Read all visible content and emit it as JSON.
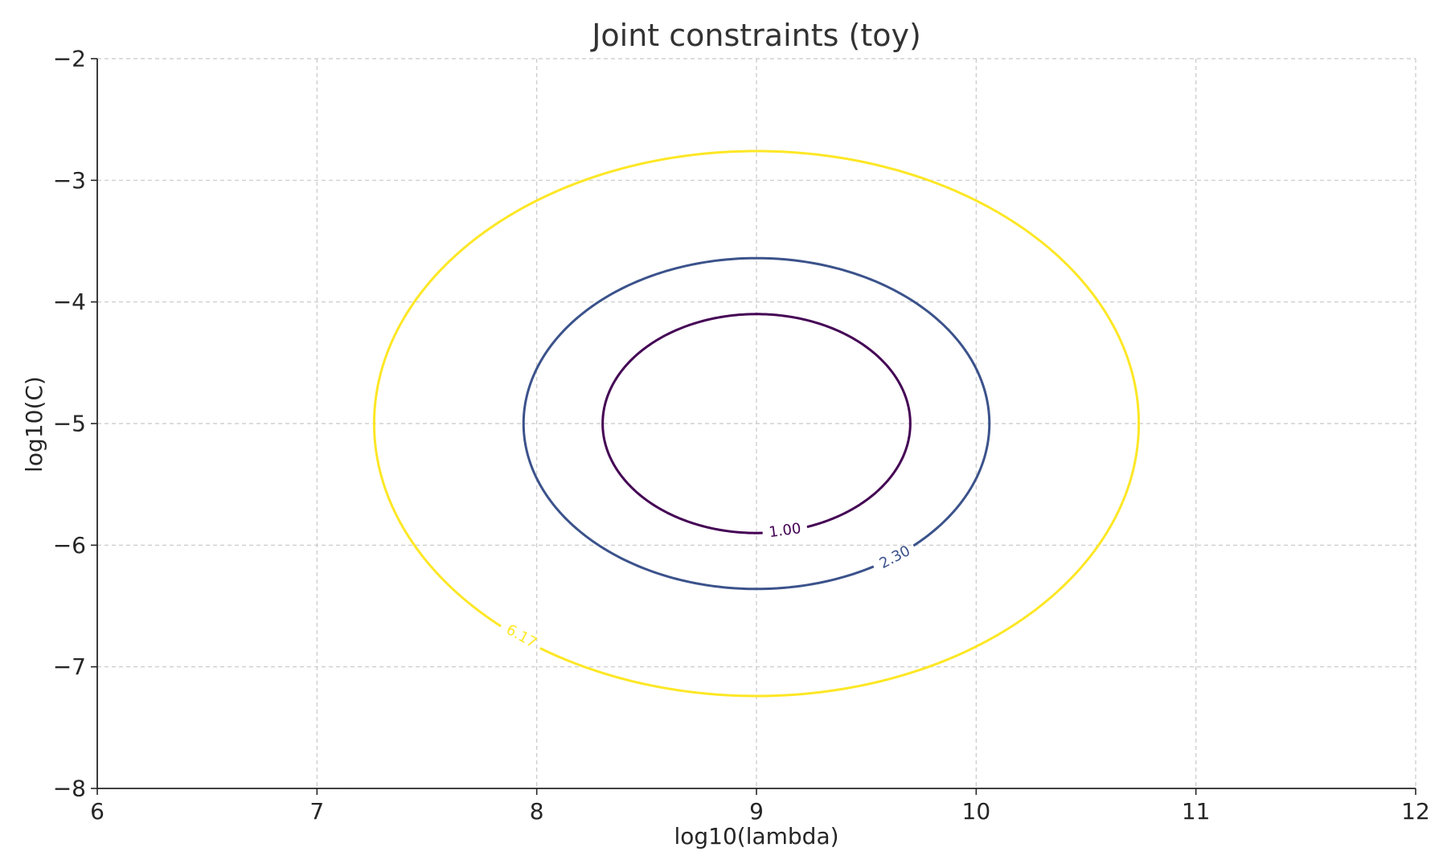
{
  "chart_data": {
    "type": "contour",
    "title": "Joint constraints (toy)",
    "xlabel": "log10(lambda)",
    "ylabel": "log10(C)",
    "xlim": [
      6,
      12
    ],
    "ylim": [
      -8,
      -2
    ],
    "xticks": [
      6,
      7,
      8,
      9,
      10,
      11,
      12
    ],
    "yticks": [
      -8,
      -7,
      -6,
      -5,
      -4,
      -3,
      -2
    ],
    "xtick_labels": [
      "6",
      "7",
      "8",
      "9",
      "10",
      "11",
      "12"
    ],
    "ytick_labels": [
      "−8",
      "−7",
      "−6",
      "−5",
      "−4",
      "−3",
      "−2"
    ],
    "grid": true,
    "center": {
      "x": 9,
      "y": -5
    },
    "contours": [
      {
        "level": 1.0,
        "label": "1.00",
        "color": "#440154",
        "half_width_x": 0.7,
        "half_height_y": 0.9,
        "label_at": {
          "x": 9.13,
          "y": -5.88
        }
      },
      {
        "level": 2.3,
        "label": "2.30",
        "color": "#3b528b",
        "half_width_x": 1.06,
        "half_height_y": 1.36,
        "label_at": {
          "x": 9.63,
          "y": -6.1
        }
      },
      {
        "level": 6.17,
        "label": "6.17",
        "color": "#fde725",
        "half_width_x": 1.74,
        "half_height_y": 2.24,
        "label_at": {
          "x": 7.93,
          "y": -6.75
        }
      }
    ]
  }
}
